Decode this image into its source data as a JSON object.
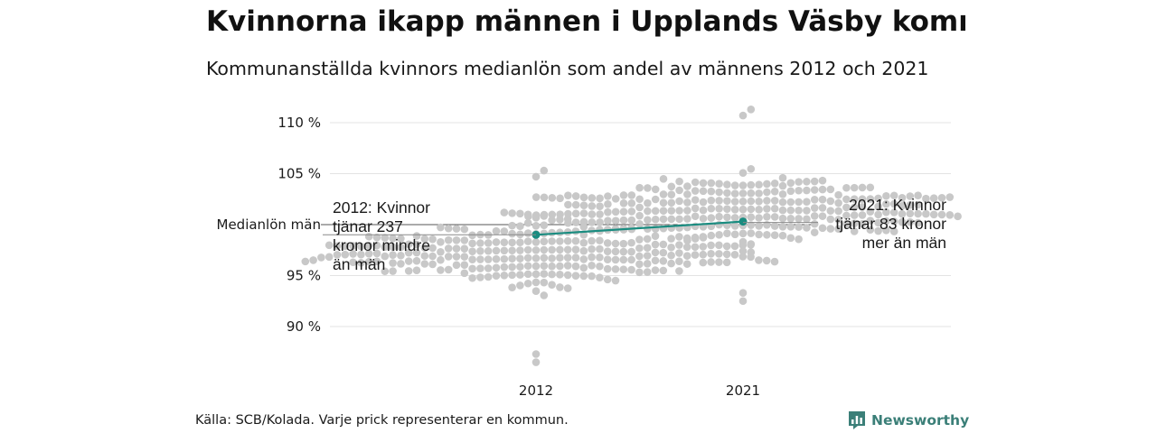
{
  "header": {
    "title": "Kvinnorna ikapp männen i Upplands Väsby kommun",
    "subtitle": "Kommunanställda kvinnors medianlön som andel av männens 2012 och 2021"
  },
  "footer": {
    "source": "Källa: SCB/Kolada. Varje prick representerar en kommun.",
    "brand": "Newsworthy",
    "brand_icon": "newsworthy-logo-icon"
  },
  "colors": {
    "dots": "#c8c8c8",
    "highlight": "#1a8c80",
    "grid": "#e3e3e3",
    "reference_line": "#555555"
  },
  "chart_data": {
    "type": "scatter",
    "title": "Kvinnorna ikapp männen i Upplands Väsby kommun",
    "subtitle": "Kommunanställda kvinnors medianlön som andel av männens 2012 och 2021",
    "categories": [
      "2012",
      "2021"
    ],
    "ylim": [
      86,
      112
    ],
    "yticks": [
      {
        "value": 90,
        "label": "90 %"
      },
      {
        "value": 95,
        "label": "95 %"
      },
      {
        "value": 105,
        "label": "105 %"
      },
      {
        "value": 110,
        "label": "110 %"
      }
    ],
    "reference": {
      "value": 100,
      "label": "Medianlön män"
    },
    "grid": true,
    "series": [
      {
        "name": "Upplands Väsby",
        "points": [
          {
            "x": "2012",
            "y": 99
          },
          {
            "x": "2021",
            "y": 100.3
          }
        ]
      }
    ],
    "distribution_summary": [
      {
        "x": "2012",
        "min": 86.5,
        "max": 105.3,
        "center": 97.5
      },
      {
        "x": "2021",
        "min": 92.5,
        "max": 111.3,
        "center": 101.5
      }
    ],
    "annotations": [
      {
        "year": "2012",
        "lines": [
          "2012: Kvinnor",
          "tjänar 237",
          "kronor mindre",
          "än män"
        ]
      },
      {
        "year": "2021",
        "lines": [
          "2021: Kvinnor",
          "tjänar 83 kronor",
          "mer än män"
        ]
      }
    ]
  }
}
